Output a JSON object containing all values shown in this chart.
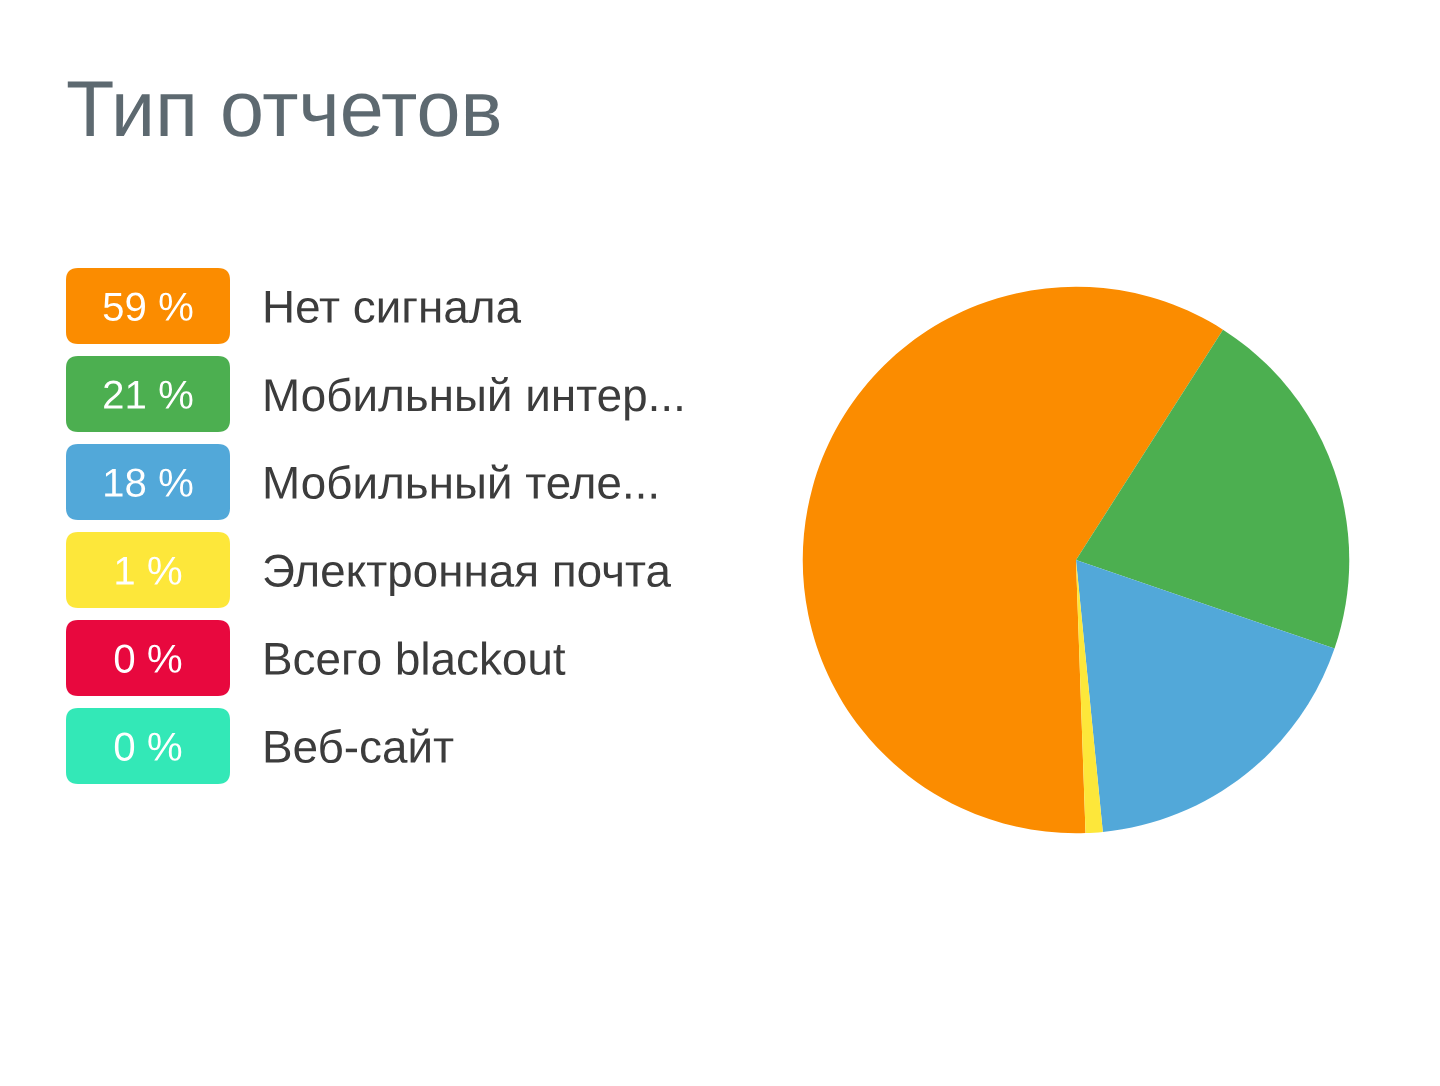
{
  "chart_data": {
    "type": "pie",
    "title": "Тип отчетов",
    "categories": [
      "Нет сигнала",
      "Мобильный интер...",
      "Мобильный теле...",
      "Электронная почта",
      "Всего blackout",
      "Веб-сайт"
    ],
    "values": [
      59,
      21,
      18,
      1,
      0,
      0
    ],
    "value_labels": [
      "59 %",
      "21 %",
      "18 %",
      "1 %",
      "0 %",
      "0 %"
    ],
    "colors": [
      "#fb8c00",
      "#4caf50",
      "#52a8d9",
      "#fde73a",
      "#e8083e",
      "#33e8b7"
    ],
    "legend": "left"
  }
}
